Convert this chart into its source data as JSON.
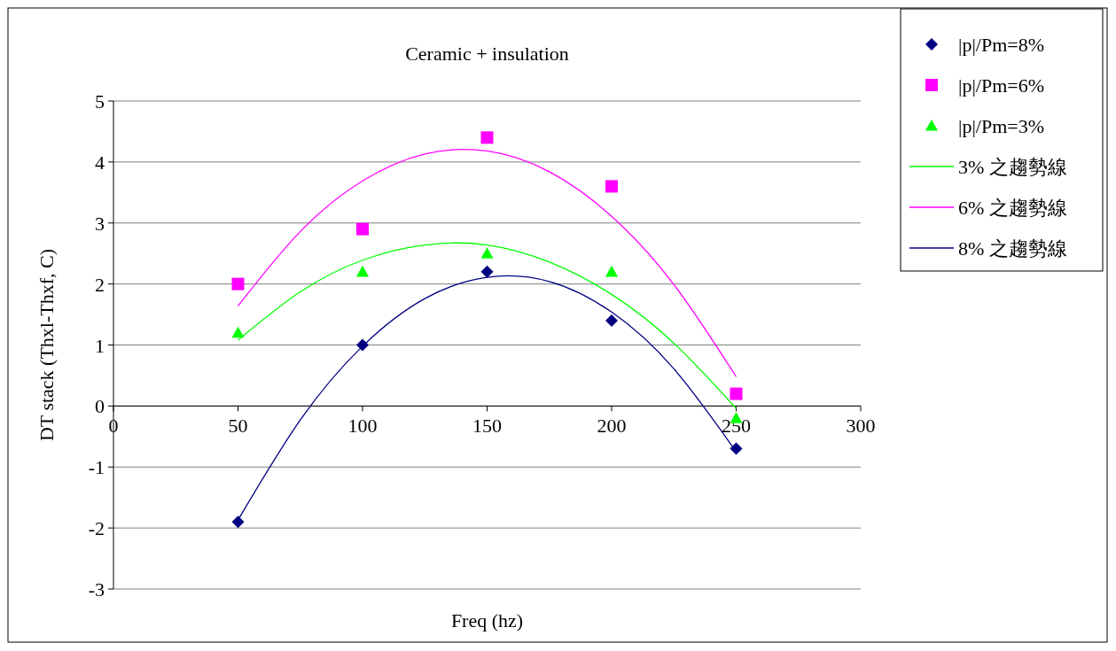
{
  "chart_data": {
    "type": "scatter",
    "title": "Ceramic + insulation",
    "xlabel": "Freq (hz)",
    "ylabel": "DT stack (Thxl-Thxf, C)",
    "xlim": [
      0,
      300
    ],
    "xticks": [
      0,
      50,
      100,
      150,
      200,
      250,
      300
    ],
    "ylim": [
      -3,
      5
    ],
    "yticks": [
      -3,
      -2,
      -1,
      0,
      1,
      2,
      3,
      4,
      5
    ],
    "grid": "y",
    "legend": "right",
    "x": [
      50,
      100,
      150,
      200,
      250
    ],
    "series": [
      {
        "name": "|p|/Pm=8%",
        "color": "#000080",
        "marker": "diamond",
        "values": [
          -1.9,
          1.0,
          2.2,
          1.4,
          -0.7
        ]
      },
      {
        "name": "|p|/Pm=6%",
        "color": "#ff00ff",
        "marker": "square",
        "values": [
          2.0,
          2.9,
          4.4,
          3.6,
          0.2
        ]
      },
      {
        "name": "|p|/Pm=3%",
        "color": "#00ff00",
        "marker": "triangle",
        "values": [
          1.2,
          2.2,
          2.5,
          2.2,
          -0.2
        ]
      },
      {
        "name": "3% 之趨勢線",
        "type": "line",
        "color": "#00ff00",
        "marker": "none",
        "x": [
          50,
          75,
          100,
          125,
          150,
          175,
          200,
          225,
          250
        ],
        "values": [
          1.08,
          1.87,
          2.39,
          2.64,
          2.64,
          2.36,
          1.83,
          1.03,
          -0.04
        ]
      },
      {
        "name": "6% 之趨勢線",
        "type": "line",
        "color": "#ff00ff",
        "marker": "none",
        "x": [
          50,
          75,
          100,
          125,
          150,
          175,
          200,
          225,
          250
        ],
        "values": [
          1.64,
          2.86,
          3.69,
          4.13,
          4.18,
          3.84,
          3.11,
          1.99,
          0.48
        ]
      },
      {
        "name": "8% 之趨勢線",
        "type": "line",
        "color": "#000080",
        "marker": "none",
        "x": [
          50,
          75,
          100,
          125,
          150,
          175,
          200,
          225,
          250
        ],
        "values": [
          -1.87,
          -0.23,
          0.98,
          1.76,
          2.11,
          2.04,
          1.54,
          0.61,
          -0.75
        ]
      }
    ]
  }
}
